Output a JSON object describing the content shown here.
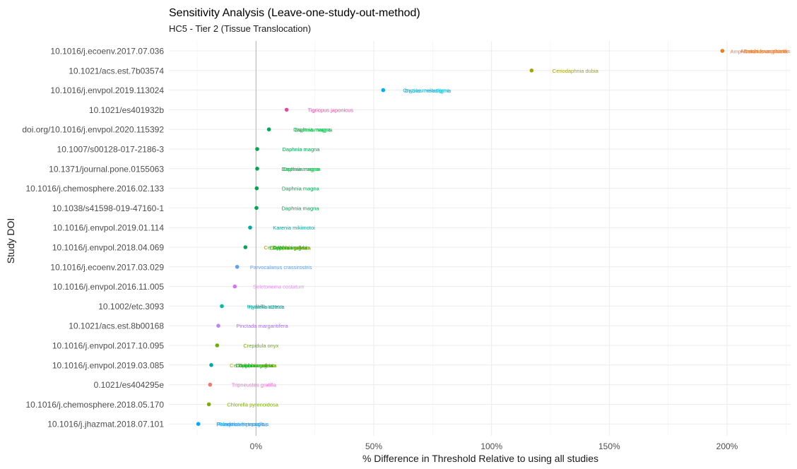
{
  "chart_data": {
    "type": "scatter",
    "title": "Sensitivity Analysis (Leave-one-study-out-method)",
    "subtitle": "HC5 - Tier 2 (Tissue Translocation)",
    "xlabel": "% Difference in Threshold Relative to using all studies",
    "ylabel": "Study DOI",
    "xlim": [
      -37,
      227
    ],
    "x_ticks": [
      0,
      50,
      100,
      150,
      200
    ],
    "x_tick_labels": [
      "0%",
      "50%",
      "100%",
      "150%",
      "200%"
    ],
    "reference_line_x": 0,
    "grid": true,
    "legend": "none",
    "points": [
      {
        "doi": "10.1016/j.ecoenv.2017.07.036",
        "x": 198,
        "color": "#e67e22",
        "labels": [
          {
            "text": "Artemia franciscana",
            "color": "#e6762d"
          },
          {
            "text": "Amphibalanus amphitrite",
            "color": "#f27c60"
          },
          {
            "text": "Brachionus plicatilis",
            "color": "#e58a2a"
          }
        ]
      },
      {
        "doi": "10.1021/acs.est.7b03574",
        "x": 117,
        "color": "#a3a500",
        "labels": [
          {
            "text": "Ceriodaphnia dubia",
            "color": "#a3a500"
          }
        ]
      },
      {
        "doi": "10.1016/j.envpol.2019.113024",
        "x": 54,
        "color": "#00b0f6",
        "labels": [
          {
            "text": "Oryzias melastigma",
            "color": "#00b0f6"
          },
          {
            "text": "Oryzias melastigma",
            "color": "#00bfc4"
          }
        ]
      },
      {
        "doi": "10.1021/es401932b",
        "x": 13,
        "color": "#e7479f",
        "labels": [
          {
            "text": "Tigriopus japonicus",
            "color": "#e7479f"
          }
        ]
      },
      {
        "doi": "doi.org/10.1016/j.envpol.2020.115392",
        "x": 5.5,
        "color": "#00a651",
        "labels": [
          {
            "text": "Daphnia magna",
            "color": "#00a651"
          },
          {
            "text": "Daphnia magna",
            "color": "#00ba38"
          }
        ]
      },
      {
        "doi": "10.1007/s00128-017-2186-3",
        "x": 0.5,
        "color": "#00a651",
        "labels": [
          {
            "text": "Daphnia magna",
            "color": "#00a651"
          }
        ]
      },
      {
        "doi": "10.1371/journal.pone.0155063",
        "x": 0.5,
        "color": "#00a651",
        "labels": [
          {
            "text": "Daphnia magna",
            "color": "#00a651"
          },
          {
            "text": "Daphnia magna",
            "color": "#00ba38"
          }
        ]
      },
      {
        "doi": "10.1016/j.chemosphere.2016.02.133",
        "x": 0.3,
        "color": "#00a651",
        "labels": [
          {
            "text": "Daphnia magna",
            "color": "#00a651"
          }
        ]
      },
      {
        "doi": "10.1038/s41598-019-47160-1",
        "x": 0.2,
        "color": "#00a651",
        "labels": [
          {
            "text": "Daphnia magna",
            "color": "#00a651"
          }
        ]
      },
      {
        "doi": "10.1016/j.envpol.2019.01.114",
        "x": -2.5,
        "color": "#00a9a5",
        "labels": [
          {
            "text": "Karenia mikimotoi",
            "color": "#00a9a5"
          }
        ]
      },
      {
        "doi": "10.1016/j.envpol.2018.04.069",
        "x": -4.5,
        "color": "#00a651",
        "labels": [
          {
            "text": "Ceriodaphnia dubia",
            "color": "#a3a500"
          },
          {
            "text": "Daphnia magna",
            "color": "#00a651"
          },
          {
            "text": "Daphnia pulex",
            "color": "#00ba38"
          },
          {
            "text": "Daphnia galeata",
            "color": "#6bb100"
          }
        ]
      },
      {
        "doi": "10.1016/j.ecoenv.2017.03.029",
        "x": -8,
        "color": "#619cff",
        "labels": [
          {
            "text": "Parvocalanus crassirostris",
            "color": "#619cff"
          }
        ]
      },
      {
        "doi": "10.1016/j.envpol.2016.11.005",
        "x": -9,
        "color": "#d874f0",
        "labels": [
          {
            "text": "Seletonema costatum",
            "color": "#e68bf4"
          }
        ]
      },
      {
        "doi": "10.1002/etc.3093",
        "x": -14.5,
        "color": "#00bfa0",
        "labels": [
          {
            "text": "Hyalella azteca",
            "color": "#00bfa0"
          },
          {
            "text": "Hyalella azteca",
            "color": "#00a9a5"
          }
        ]
      },
      {
        "doi": "10.1021/acs.est.8b00168",
        "x": -16,
        "color": "#b983ff",
        "labels": [
          {
            "text": "Pinctada margaritifera",
            "color": "#a970f0"
          }
        ]
      },
      {
        "doi": "10.1016/j.envpol.2017.10.095",
        "x": -16.5,
        "color": "#6bb100",
        "labels": [
          {
            "text": "Crepidula onyx",
            "color": "#6bb100"
          }
        ]
      },
      {
        "doi": "10.1016/j.envpol.2019.03.085",
        "x": -19,
        "color": "#00a9a5",
        "labels": [
          {
            "text": "Ceriodaphnia dubia",
            "color": "#a3a500"
          },
          {
            "text": "Daphnia magna",
            "color": "#00a651"
          },
          {
            "text": "Daphnia pulex",
            "color": "#00ba38"
          },
          {
            "text": "Daphnia galeata",
            "color": "#6bb100"
          }
        ]
      },
      {
        "doi": "0.1021/es404295e",
        "x": -19.5,
        "color": "#f8766d",
        "labels": [
          {
            "text": "Tripneustes gratilla",
            "color": "#fb61d7"
          }
        ]
      },
      {
        "doi": "10.1016/j.chemosphere.2018.05.170",
        "x": -20,
        "color": "#7cae00",
        "labels": [
          {
            "text": "Chlorella pyrenoidosa",
            "color": "#7cae00"
          }
        ]
      },
      {
        "doi": "10.1016/j.jhazmat.2018.07.101",
        "x": -24.5,
        "color": "#00a8ff",
        "labels": [
          {
            "text": "Palaemonetes pugio",
            "color": "#00a8ff"
          },
          {
            "text": "Pimephales promelas",
            "color": "#619cff"
          },
          {
            "text": "Fundulus heteroclitus",
            "color": "#00b0f6"
          }
        ]
      }
    ]
  }
}
